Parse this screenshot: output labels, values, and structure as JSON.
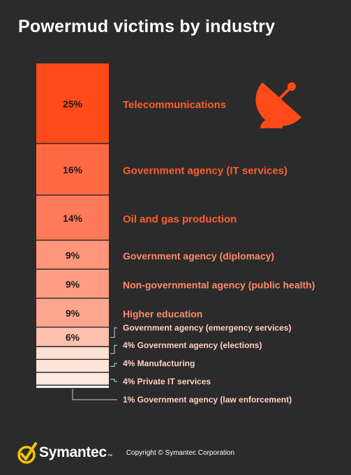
{
  "title": "Powermud victims by industry",
  "colors": {
    "background": "#2b2b2b",
    "label_top": "#ff5e2e",
    "label_mid": "#ff8a6a",
    "label_small": "#ffd0c0",
    "leader": "#cfcfcf",
    "icon": "#ff4a1a",
    "brand_check": "#f5c400"
  },
  "icon": "satellite-dish-icon",
  "chart_data": {
    "type": "bar",
    "orientation": "stacked-vertical",
    "categories": [
      "Telecommunications",
      "Government agency (IT services)",
      "Oil and gas production",
      "Government agency (diplomacy)",
      "Non-governmental agency (public health)",
      "Higher education",
      "Government agency (emergency services)",
      "Government agency (elections)",
      "Manufacturing",
      "Private IT services",
      "Government agency (law enforcement)"
    ],
    "values": [
      25,
      16,
      14,
      9,
      9,
      9,
      6,
      4,
      4,
      4,
      1
    ],
    "value_labels": [
      "25%",
      "16%",
      "14%",
      "9%",
      "9%",
      "9%",
      "6%",
      "4%",
      "4%",
      "4%",
      "1%"
    ],
    "segment_colors": [
      "#ff4a1a",
      "#ff6a45",
      "#ff7a5a",
      "#ff957a",
      "#ff9e85",
      "#ffa690",
      "#ffc0ad",
      "#ffe0d5",
      "#ffe4da",
      "#ffe8e0",
      "#ffffff"
    ],
    "label_styles": [
      "big",
      "big",
      "big",
      "mid",
      "mid",
      "mid",
      "small",
      "small",
      "small",
      "small",
      "small"
    ],
    "inner_label": [
      true,
      true,
      true,
      true,
      true,
      true,
      true,
      false,
      false,
      false,
      false
    ],
    "outer_label_with_value": [
      false,
      false,
      false,
      false,
      false,
      false,
      false,
      true,
      true,
      true,
      true
    ],
    "unit": "%",
    "title": "Powermud victims by industry"
  },
  "footer": {
    "brand": "Symantec",
    "tm": "™",
    "copyright": "Copyright © Symantec Corporation"
  }
}
